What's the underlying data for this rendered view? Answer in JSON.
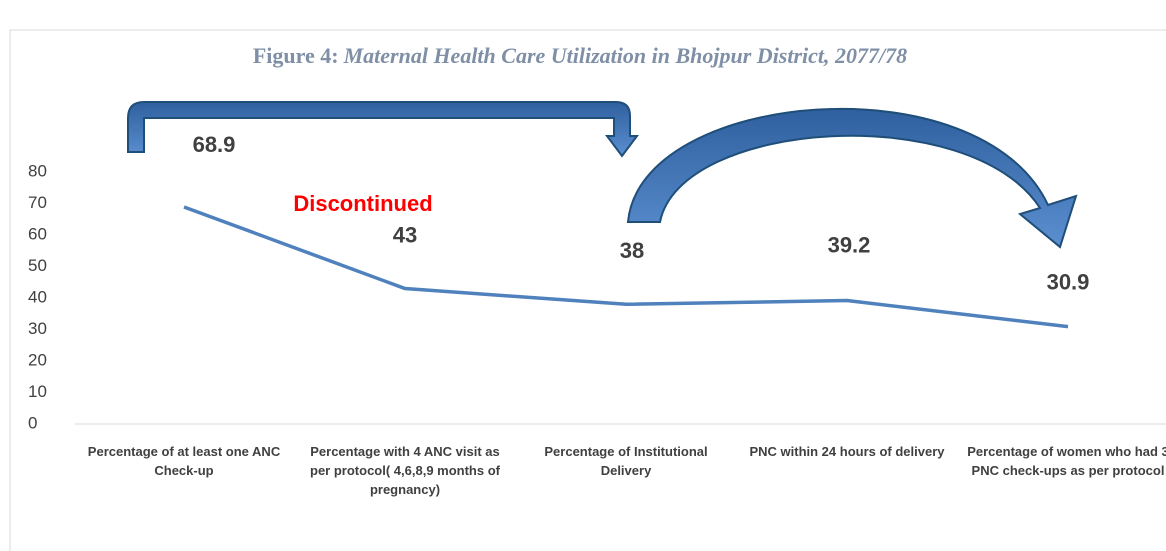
{
  "chart_data": {
    "type": "line",
    "title_label": "Figure 4:",
    "title": "Maternal Health Care Utilization in Bhojpur District, 2077/78",
    "categories": [
      "Percentage of at least one ANC Check-up",
      "Percentage with 4 ANC visit as per protocol( 4,6,8,9 months of pregnancy)",
      "Percentage of Institutional Delivery",
      "PNC within 24 hours of delivery",
      "Percentage of women who had 3 PNC check-ups as per protocol"
    ],
    "series": [
      {
        "name": "Maternal Health Care Utilization",
        "color": "#4f81bd",
        "values": [
          68.9,
          43,
          38,
          39.2,
          30.9
        ]
      }
    ],
    "ylim": [
      0,
      80
    ],
    "yticks": [
      0,
      10,
      20,
      30,
      40,
      50,
      60,
      70,
      80
    ],
    "annotations": [
      "Discontinued"
    ],
    "grid": false
  }
}
